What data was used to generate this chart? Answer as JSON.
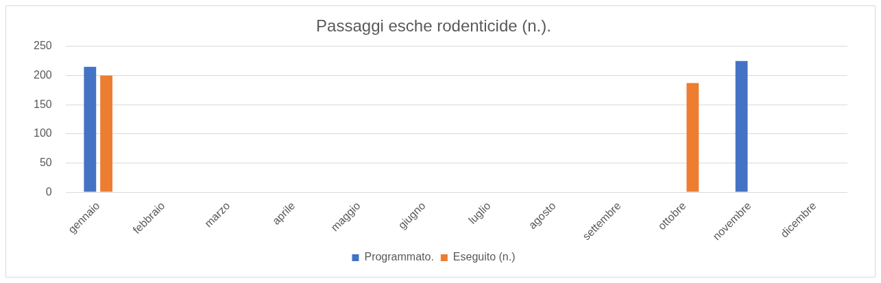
{
  "chart_data": {
    "type": "bar",
    "title": "Passaggi esche rodenticide (n.).",
    "categories": [
      "gennaio",
      "febbraio",
      "marzo",
      "aprile",
      "maggio",
      "giugno",
      "luglio",
      "agosto",
      "settembre",
      "ottobre",
      "novembre",
      "dicembre"
    ],
    "series": [
      {
        "name": "Programmato.",
        "color": "#4472c4",
        "values": [
          215,
          null,
          null,
          null,
          null,
          null,
          null,
          null,
          null,
          null,
          225,
          null
        ]
      },
      {
        "name": "Eseguito (n.)",
        "color": "#ed7d31",
        "values": [
          200,
          null,
          null,
          null,
          null,
          null,
          null,
          null,
          null,
          187,
          null,
          null
        ]
      }
    ],
    "ylim": [
      0,
      250
    ],
    "yticks": [
      0,
      50,
      100,
      150,
      200,
      250
    ],
    "grid": "y",
    "legend": "bottom"
  }
}
